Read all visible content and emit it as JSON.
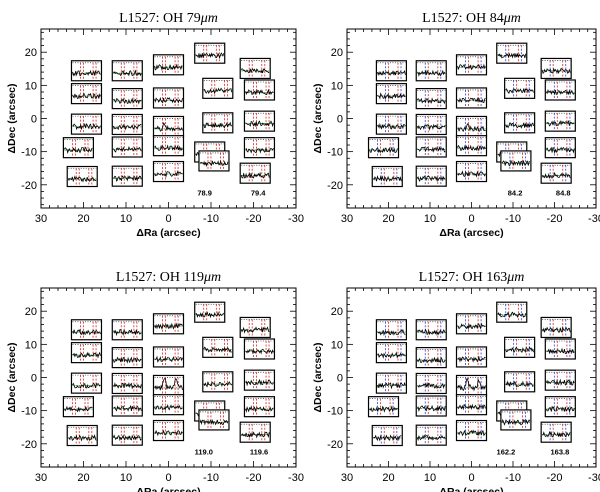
{
  "chart_data": [
    {
      "type": "scatter",
      "title": "L1527: OH 79μm",
      "title_prefix": "L1527: OH 79",
      "title_unit": "μm",
      "xlabel": "ΔRa (arcsec)",
      "ylabel": "ΔDec (arcsec)",
      "xlim": [
        30,
        -30
      ],
      "ylim": [
        -27,
        27
      ],
      "xticks": [
        30,
        20,
        10,
        0,
        -10,
        -20,
        -30
      ],
      "yticks": [
        -20,
        -10,
        0,
        10,
        20
      ],
      "line_colors": [
        "#d62728",
        "#d62728"
      ],
      "spaxels": [
        {
          "ra": 19.3,
          "dec": 14.4
        },
        {
          "ra": 9.7,
          "dec": 14.4
        },
        {
          "ra": 0.0,
          "dec": 16.2
        },
        {
          "ra": -9.7,
          "dec": 19.7
        },
        {
          "ra": -20.4,
          "dec": 15.1
        },
        {
          "ra": 19.3,
          "dec": 7.5
        },
        {
          "ra": 9.7,
          "dec": 6.0
        },
        {
          "ra": 0.0,
          "dec": 6.2
        },
        {
          "ra": -11.6,
          "dec": 9.1
        },
        {
          "ra": -21.4,
          "dec": 8.6
        },
        {
          "ra": 19.3,
          "dec": -1.7
        },
        {
          "ra": 9.7,
          "dec": -1.8
        },
        {
          "ra": 0.0,
          "dec": -2.4
        },
        {
          "ra": -11.6,
          "dec": -1.3
        },
        {
          "ra": -21.4,
          "dec": -0.8
        },
        {
          "ra": 21.2,
          "dec": -8.8
        },
        {
          "ra": 9.7,
          "dec": -8.6
        },
        {
          "ra": 0.0,
          "dec": -8.2
        },
        {
          "ra": -9.7,
          "dec": -10.1
        },
        {
          "ra": -21.4,
          "dec": -8.8
        },
        {
          "ra": 20.3,
          "dec": -17.5
        },
        {
          "ra": 9.7,
          "dec": -17.4
        },
        {
          "ra": 0.0,
          "dec": -16.0
        },
        {
          "ra": -10.7,
          "dec": -12.8
        },
        {
          "ra": -20.4,
          "dec": -16.5
        }
      ],
      "center_spaxel": 12,
      "annotations": [
        {
          "text": "78.9",
          "ra": -8.5,
          "dec": -23.3
        },
        {
          "text": "79.4",
          "ra": -21.1,
          "dec": -23.3
        }
      ]
    },
    {
      "type": "scatter",
      "title": "L1527: OH 84μm",
      "title_prefix": "L1527: OH 84",
      "title_unit": "μm",
      "xlabel": "ΔRa (arcsec)",
      "ylabel": "ΔDec (arcsec)",
      "xlim": [
        30,
        -30
      ],
      "ylim": [
        -27,
        27
      ],
      "xticks": [
        30,
        20,
        10,
        0,
        -10,
        -20,
        -30
      ],
      "yticks": [
        -20,
        -10,
        0,
        10,
        20
      ],
      "line_colors": [
        "#3b3bd6",
        "#d62728"
      ],
      "spaxels": [
        {
          "ra": 19.3,
          "dec": 14.4
        },
        {
          "ra": 9.7,
          "dec": 14.4
        },
        {
          "ra": 0.0,
          "dec": 16.2
        },
        {
          "ra": -9.7,
          "dec": 19.7
        },
        {
          "ra": -20.4,
          "dec": 15.1
        },
        {
          "ra": 19.3,
          "dec": 7.5
        },
        {
          "ra": 9.7,
          "dec": 6.0
        },
        {
          "ra": 0.0,
          "dec": 6.2
        },
        {
          "ra": -11.6,
          "dec": 9.1
        },
        {
          "ra": -21.4,
          "dec": 8.6
        },
        {
          "ra": 19.3,
          "dec": -1.7
        },
        {
          "ra": 9.7,
          "dec": -1.8
        },
        {
          "ra": 0.0,
          "dec": -2.4
        },
        {
          "ra": -11.6,
          "dec": -1.3
        },
        {
          "ra": -21.4,
          "dec": -0.8
        },
        {
          "ra": 21.2,
          "dec": -8.8
        },
        {
          "ra": 9.7,
          "dec": -8.6
        },
        {
          "ra": 0.0,
          "dec": -8.2
        },
        {
          "ra": -9.7,
          "dec": -10.1
        },
        {
          "ra": -21.4,
          "dec": -8.8
        },
        {
          "ra": 20.3,
          "dec": -17.5
        },
        {
          "ra": 9.7,
          "dec": -17.4
        },
        {
          "ra": 0.0,
          "dec": -16.0
        },
        {
          "ra": -10.7,
          "dec": -12.8
        },
        {
          "ra": -20.4,
          "dec": -16.5
        }
      ],
      "center_spaxel": 12,
      "annotations": [
        {
          "text": "84.2",
          "ra": -10.5,
          "dec": -23.3
        },
        {
          "text": "84.8",
          "ra": -22.1,
          "dec": -23.3
        }
      ]
    },
    {
      "type": "scatter",
      "title": "L1527: OH 119μm",
      "title_prefix": "L1527: OH 119",
      "title_unit": "μm",
      "xlabel": "ΔRa (arcsec)",
      "ylabel": "ΔDec (arcsec)",
      "xlim": [
        30,
        -30
      ],
      "ylim": [
        -27,
        27
      ],
      "xticks": [
        30,
        20,
        10,
        0,
        -10,
        -20,
        -30
      ],
      "yticks": [
        -20,
        -10,
        0,
        10,
        20
      ],
      "line_colors": [
        "#d62728",
        "#d62728"
      ],
      "spaxels": [
        {
          "ra": 19.3,
          "dec": 14.4
        },
        {
          "ra": 9.7,
          "dec": 14.4
        },
        {
          "ra": 0.0,
          "dec": 16.2
        },
        {
          "ra": -9.7,
          "dec": 19.7
        },
        {
          "ra": -20.4,
          "dec": 15.1
        },
        {
          "ra": 19.3,
          "dec": 7.5
        },
        {
          "ra": 9.7,
          "dec": 6.0
        },
        {
          "ra": 0.0,
          "dec": 6.2
        },
        {
          "ra": -11.6,
          "dec": 9.1
        },
        {
          "ra": -21.4,
          "dec": 8.6
        },
        {
          "ra": 19.3,
          "dec": -1.7
        },
        {
          "ra": 9.7,
          "dec": -1.8
        },
        {
          "ra": 0.0,
          "dec": -2.4
        },
        {
          "ra": -11.6,
          "dec": -1.3
        },
        {
          "ra": -21.4,
          "dec": -0.8
        },
        {
          "ra": 21.2,
          "dec": -8.8
        },
        {
          "ra": 9.7,
          "dec": -8.6
        },
        {
          "ra": 0.0,
          "dec": -8.2
        },
        {
          "ra": -9.7,
          "dec": -10.1
        },
        {
          "ra": -21.4,
          "dec": -8.8
        },
        {
          "ra": 20.3,
          "dec": -17.5
        },
        {
          "ra": 9.7,
          "dec": -17.4
        },
        {
          "ra": 0.0,
          "dec": -16.0
        },
        {
          "ra": -10.7,
          "dec": -12.8
        },
        {
          "ra": -20.4,
          "dec": -16.5
        }
      ],
      "center_spaxel": 12,
      "annotations": [
        {
          "text": "119.0",
          "ra": -8.3,
          "dec": -23.3
        },
        {
          "text": "119.6",
          "ra": -21.3,
          "dec": -23.3
        }
      ]
    },
    {
      "type": "scatter",
      "title": "L1527: OH 163μm",
      "title_prefix": "L1527: OH 163",
      "title_unit": "μm",
      "xlabel": "ΔRa (arcsec)",
      "ylabel": "ΔDec (arcsec)",
      "xlim": [
        30,
        -30
      ],
      "ylim": [
        -27,
        27
      ],
      "xticks": [
        30,
        20,
        10,
        0,
        -10,
        -20,
        -30
      ],
      "yticks": [
        -20,
        -10,
        0,
        10,
        20
      ],
      "line_colors": [
        "#3b3bd6",
        "#d62728"
      ],
      "spaxels": [
        {
          "ra": 19.3,
          "dec": 14.4
        },
        {
          "ra": 9.7,
          "dec": 14.4
        },
        {
          "ra": 0.0,
          "dec": 16.2
        },
        {
          "ra": -9.7,
          "dec": 19.7
        },
        {
          "ra": -20.4,
          "dec": 15.1
        },
        {
          "ra": 19.3,
          "dec": 7.5
        },
        {
          "ra": 9.7,
          "dec": 6.0
        },
        {
          "ra": 0.0,
          "dec": 6.2
        },
        {
          "ra": -11.6,
          "dec": 9.1
        },
        {
          "ra": -21.4,
          "dec": 8.6
        },
        {
          "ra": 19.3,
          "dec": -1.7
        },
        {
          "ra": 9.7,
          "dec": -1.8
        },
        {
          "ra": 0.0,
          "dec": -2.4
        },
        {
          "ra": -11.6,
          "dec": -1.3
        },
        {
          "ra": -21.4,
          "dec": -0.8
        },
        {
          "ra": 21.2,
          "dec": -8.8
        },
        {
          "ra": 9.7,
          "dec": -8.6
        },
        {
          "ra": 0.0,
          "dec": -8.2
        },
        {
          "ra": -9.7,
          "dec": -10.1
        },
        {
          "ra": -21.4,
          "dec": -8.8
        },
        {
          "ra": 20.3,
          "dec": -17.5
        },
        {
          "ra": 9.7,
          "dec": -17.4
        },
        {
          "ra": 0.0,
          "dec": -16.0
        },
        {
          "ra": -10.7,
          "dec": -12.8
        },
        {
          "ra": -20.4,
          "dec": -16.5
        }
      ],
      "center_spaxel": 12,
      "annotations": [
        {
          "text": "162.2",
          "ra": -8.3,
          "dec": -23.3
        },
        {
          "text": "163.8",
          "ra": -21.3,
          "dec": -23.3
        }
      ]
    }
  ]
}
